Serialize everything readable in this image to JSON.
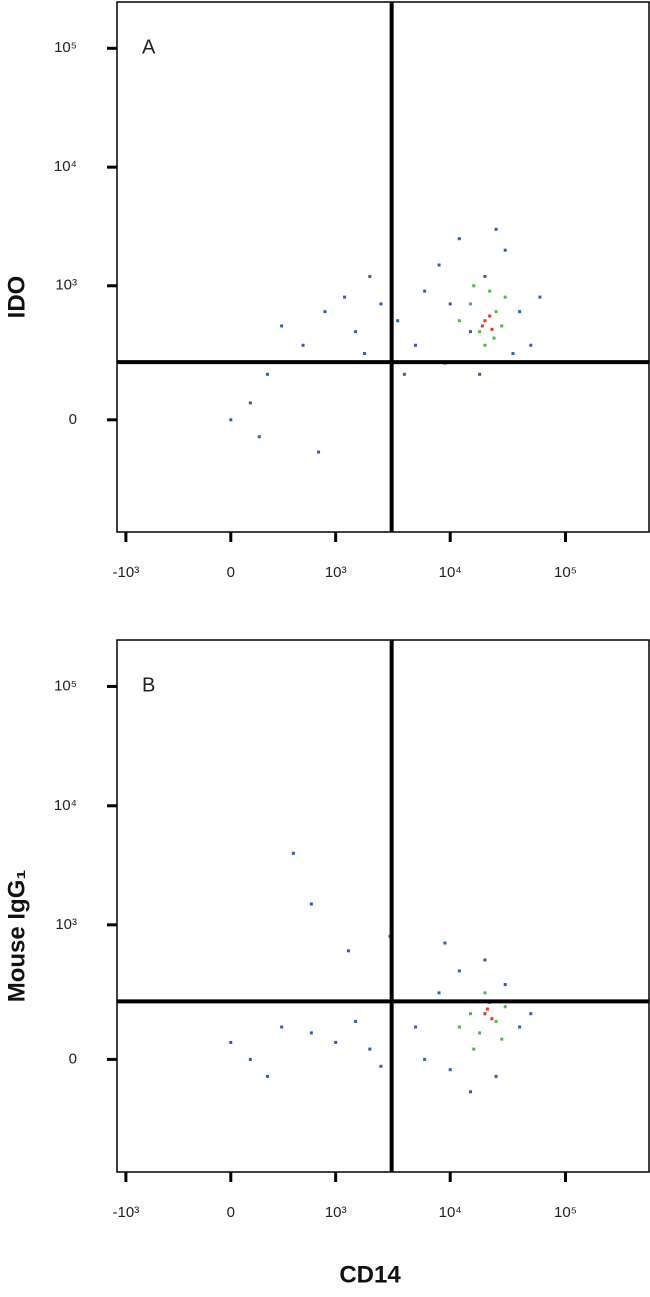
{
  "chart_data": [
    {
      "type": "scatter",
      "panel_label": "A",
      "ylabel": "IDO",
      "xscale": "biexponential",
      "yscale": "biexponential",
      "xlim": [
        -1200,
        530000
      ],
      "ylim": [
        -650,
        245000
      ],
      "xticks": [
        {
          "value": -1000,
          "label": "-10³"
        },
        0,
        {
          "value": 1000,
          "label": "10³"
        },
        {
          "value": 10000,
          "label": "10⁴"
        },
        {
          "value": 100000,
          "label": "10⁵"
        }
      ],
      "yticks": [
        0,
        {
          "value": 1000,
          "label": "10³"
        },
        {
          "value": 10000,
          "label": "10⁴"
        },
        {
          "value": 100000,
          "label": "10⁵"
        }
      ],
      "quadrant": {
        "x": 3100,
        "y": 205
      },
      "series": [
        {
          "color": "#2f5fb0",
          "x": [
            100,
            150,
            0,
            200,
            500,
            800,
            1200,
            1500,
            2000,
            2500,
            3500,
            5000,
            6000,
            8000,
            12000,
            15000,
            20000,
            30000,
            40000,
            50000,
            25000,
            9000,
            700,
            300,
            1800,
            4000,
            60000,
            35000,
            10000,
            18000
          ],
          "y": [
            50,
            -50,
            0,
            150,
            300,
            600,
            800,
            400,
            1200,
            700,
            500,
            300,
            900,
            1500,
            2500,
            400,
            1200,
            2000,
            600,
            300,
            3000,
            200,
            -100,
            450,
            250,
            150,
            800,
            250,
            700,
            150
          ]
        },
        {
          "color": "#4cb84a",
          "x": [
            12000,
            15000,
            18000,
            22000,
            25000,
            28000,
            20000,
            30000,
            16000,
            24000
          ],
          "y": [
            500,
            700,
            400,
            900,
            600,
            450,
            300,
            800,
            1000,
            350
          ]
        },
        {
          "color": "#e5371c",
          "x": [
            20000,
            22000,
            19000,
            23000
          ],
          "y": [
            500,
            550,
            450,
            420
          ]
        }
      ]
    },
    {
      "type": "scatter",
      "panel_label": "B",
      "ylabel": "Mouse IgG₁",
      "xlabel": "CD14",
      "xscale": "biexponential",
      "yscale": "biexponential",
      "xlim": [
        -1200,
        530000
      ],
      "ylim": [
        -650,
        245000
      ],
      "xticks": [
        {
          "value": -1000,
          "label": "-10³"
        },
        0,
        {
          "value": 1000,
          "label": "10³"
        },
        {
          "value": 10000,
          "label": "10⁴"
        },
        {
          "value": 100000,
          "label": "10⁵"
        }
      ],
      "yticks": [
        0,
        {
          "value": 1000,
          "label": "10³"
        },
        {
          "value": 10000,
          "label": "10⁴"
        },
        {
          "value": 100000,
          "label": "10⁵"
        }
      ],
      "quadrant": {
        "x": 3100,
        "y": 205
      },
      "series": [
        {
          "color": "#2f5fb0",
          "x": [
            0,
            100,
            200,
            300,
            600,
            1000,
            1500,
            2000,
            2500,
            5000,
            8000,
            12000,
            20000,
            30000,
            40000,
            15000,
            25000,
            10000,
            50000,
            400,
            600,
            1300,
            3000,
            9000,
            6000
          ],
          "y": [
            50,
            0,
            -50,
            100,
            80,
            50,
            120,
            30,
            -20,
            100,
            250,
            400,
            500,
            300,
            100,
            -100,
            -50,
            -30,
            150,
            4000,
            1500,
            600,
            800,
            700,
            0
          ]
        },
        {
          "color": "#4cb84a",
          "x": [
            12000,
            15000,
            18000,
            22000,
            25000,
            28000,
            20000,
            30000,
            16000
          ],
          "y": [
            100,
            150,
            80,
            200,
            120,
            60,
            250,
            180,
            30
          ]
        },
        {
          "color": "#e5371c",
          "x": [
            20000,
            23000,
            21000
          ],
          "y": [
            150,
            130,
            170
          ]
        }
      ]
    }
  ]
}
